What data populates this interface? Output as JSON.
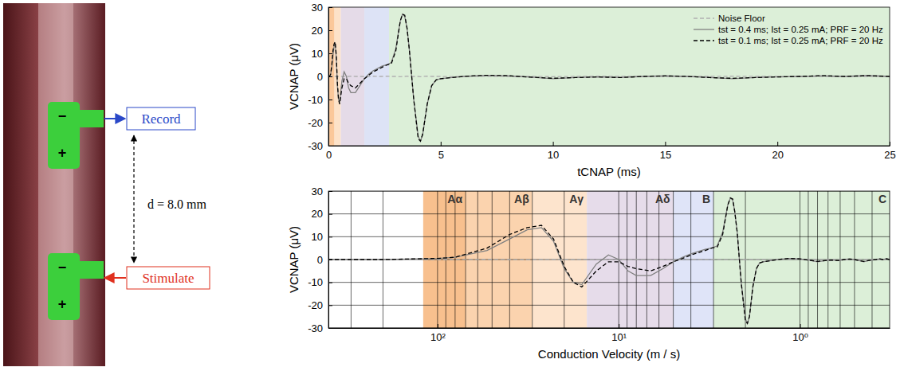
{
  "diagram": {
    "record": "Record",
    "stimulate": "Stimulate",
    "distance": "d = 8.0 mm",
    "minus": "−",
    "plus": "+"
  },
  "chart_data": [
    {
      "type": "line",
      "xlabel": "tCNAP (ms)",
      "ylabel": "VCNAP (μV)",
      "xlim": [
        0,
        25
      ],
      "xticks": [
        0,
        5,
        10,
        15,
        20,
        25
      ],
      "ylim": [
        -30,
        30
      ],
      "yticks": [
        -30,
        -20,
        -10,
        0,
        10,
        20,
        30
      ],
      "grid": false,
      "legend": "upper right",
      "bands": [
        {
          "from": 0,
          "to": 0.27,
          "color": "#fbc89a"
        },
        {
          "from": 0.27,
          "to": 0.55,
          "color": "#fde2c8"
        },
        {
          "from": 0.55,
          "to": 1.6,
          "color": "#e5dbe8"
        },
        {
          "from": 1.6,
          "to": 2.7,
          "color": "#dde3f6"
        },
        {
          "from": 2.7,
          "to": 25,
          "color": "#dcefd8"
        }
      ],
      "x": [
        0,
        0.02,
        0.04,
        0.08,
        0.1,
        0.15,
        0.2,
        0.25,
        0.3,
        0.35,
        0.4,
        0.45,
        0.5,
        0.6,
        0.7,
        0.8,
        0.9,
        1.0,
        1.2,
        1.4,
        1.6,
        1.8,
        2.0,
        2.2,
        2.4,
        2.6,
        2.8,
        3.0,
        3.2,
        3.3,
        3.4,
        3.5,
        3.6,
        3.8,
        4.0,
        4.1,
        4.2,
        4.4,
        4.6,
        4.8,
        5.0,
        5.5,
        6,
        7,
        8,
        9,
        10,
        11,
        12,
        13,
        14,
        15,
        16,
        17,
        18,
        19,
        20,
        21,
        22,
        23,
        24,
        25
      ],
      "series": [
        {
          "name": "Noise Floor",
          "color": "#b0b0b0",
          "line_style": "dashed",
          "values": [
            0,
            0,
            0,
            0,
            0,
            0.1,
            0,
            -0.1,
            0,
            0.1,
            0,
            0,
            0.1,
            0,
            -0.1,
            0,
            0,
            0.1,
            0,
            0,
            -0.1,
            0,
            0.1,
            0,
            0,
            0.1,
            0,
            0,
            -0.1,
            0,
            0,
            0.1,
            0,
            0,
            0,
            -0.1,
            0,
            0.1,
            0,
            0,
            0,
            -0.1,
            0,
            0.1,
            0,
            0,
            -0.1,
            0,
            0.1,
            0,
            0,
            -0.1,
            0,
            0,
            0.1,
            0,
            0,
            -0.1,
            0,
            0,
            0,
            0
          ]
        },
        {
          "name": "tst = 0.4 ms; Ist = 0.25 mA; PRF = 20 Hz",
          "color": "#808080",
          "line_style": "solid",
          "values": [
            0,
            0,
            0,
            0.5,
            1,
            4,
            9,
            13,
            14,
            8,
            -4,
            -10,
            -11,
            -2,
            2,
            0,
            -5,
            -7,
            -7,
            -4,
            -1,
            1,
            2.5,
            3.5,
            4.5,
            5,
            6,
            12,
            24,
            27,
            26,
            21,
            12,
            -10,
            -26,
            -28,
            -25,
            -12,
            -4,
            -1.5,
            -1,
            -0.5,
            0,
            0.5,
            0.3,
            -0.3,
            -1,
            -0.5,
            -0.2,
            -0.5,
            0,
            0.3,
            0,
            -0.5,
            -1,
            -0.5,
            -0.2,
            0,
            0.3,
            0,
            0.5,
            0
          ]
        },
        {
          "name": "tst = 0.1 ms; Ist = 0.25 mA; PRF = 20 Hz",
          "color": "#000000",
          "line_style": "dashed",
          "values": [
            0,
            0,
            0,
            0.5,
            1,
            5,
            11,
            14,
            15,
            9,
            -3,
            -10,
            -12,
            -5,
            -1,
            -1,
            -3,
            -4,
            -5,
            -3,
            -1,
            0.5,
            2,
            3,
            4,
            5,
            5.5,
            11,
            24,
            27,
            26.5,
            21,
            12,
            -10,
            -27,
            -28,
            -25,
            -12,
            -4,
            -1.5,
            -1,
            -0.5,
            0,
            0.5,
            0.3,
            -0.3,
            -0.8,
            -0.5,
            -0.2,
            -0.5,
            0,
            0.2,
            0,
            -0.5,
            -0.8,
            -0.5,
            -0.2,
            0,
            0.3,
            0,
            0.3,
            0
          ]
        }
      ]
    },
    {
      "type": "line",
      "xlabel": "Conduction Velocity (m / s)",
      "ylabel": "VCNAP (μV)",
      "log": "x",
      "xlim": [
        400,
        0.32
      ],
      "xticks": [
        {
          "value": 100,
          "label": "10²"
        },
        {
          "value": 10,
          "label": "10¹"
        },
        {
          "value": 1,
          "label": "10⁰"
        }
      ],
      "ylim": [
        -30,
        30
      ],
      "yticks": [
        -30,
        -20,
        -10,
        0,
        10,
        20,
        30
      ],
      "grid": true,
      "bands": [
        {
          "label": "Aα",
          "from": 120,
          "to": 70,
          "color": "#f8c08e"
        },
        {
          "label": "Aβ",
          "from": 70,
          "to": 30,
          "color": "#fbd3ae"
        },
        {
          "label": "Aγ",
          "from": 30,
          "to": 15,
          "color": "#fde4cd"
        },
        {
          "label": "Aδ",
          "from": 15,
          "to": 5,
          "color": "#e6dcea"
        },
        {
          "label": "B",
          "from": 5,
          "to": 3,
          "color": "#dfe4f8"
        },
        {
          "label": "C",
          "from": 3,
          "to": 0.32,
          "color": "#dcefd8"
        }
      ],
      "x": [
        400,
        200,
        100,
        80,
        53.3,
        40,
        32,
        26.7,
        22.9,
        20,
        17.8,
        16,
        13.3,
        11.4,
        10,
        8.89,
        8,
        6.67,
        5.71,
        5,
        4.44,
        4,
        3.64,
        3.33,
        3.08,
        2.86,
        2.67,
        2.5,
        2.42,
        2.35,
        2.29,
        2.22,
        2.11,
        2,
        1.95,
        1.9,
        1.82,
        1.74,
        1.67,
        1.6,
        1.45,
        1.33,
        1.14,
        1,
        0.889,
        0.8,
        0.727,
        0.667,
        0.615,
        0.571,
        0.533,
        0.5,
        0.471,
        0.444,
        0.421,
        0.4,
        0.381,
        0.364,
        0.348,
        0.333,
        0.32
      ],
      "series": [
        {
          "color": "#b0b0b0",
          "line_style": "dashed",
          "values": [
            0,
            0,
            0,
            0,
            0.1,
            0,
            -0.1,
            0,
            0.1,
            0,
            0,
            0.1,
            0,
            -0.1,
            0,
            0,
            0.1,
            0,
            0,
            -0.1,
            0,
            0.1,
            0,
            0,
            0.1,
            0,
            0,
            -0.1,
            0,
            0,
            0.1,
            0,
            0,
            0,
            -0.1,
            0,
            0.1,
            0,
            0,
            0,
            -0.1,
            0,
            0.1,
            0,
            0,
            -0.1,
            0,
            0.1,
            0,
            0,
            -0.1,
            0,
            0,
            0.1,
            0,
            0,
            -0.1,
            0,
            0,
            0,
            0
          ]
        },
        {
          "color": "#808080",
          "line_style": "solid",
          "values": [
            0,
            0,
            0.5,
            1,
            4,
            9,
            13,
            14,
            8,
            -4,
            -10,
            -11,
            -2,
            2,
            0,
            -5,
            -7,
            -7,
            -4,
            -1,
            1,
            2.5,
            3.5,
            4.5,
            5,
            6,
            12,
            24,
            27,
            26,
            21,
            12,
            -10,
            -26,
            -28,
            -25,
            -12,
            -4,
            -1.5,
            -1,
            -0.5,
            0,
            0.5,
            0.3,
            -0.3,
            -1,
            -0.5,
            -0.2,
            -0.5,
            0,
            0.3,
            0,
            -0.5,
            -1,
            -0.5,
            -0.2,
            0,
            0.3,
            0,
            0.5,
            0
          ]
        },
        {
          "color": "#000000",
          "line_style": "dashed",
          "values": [
            0,
            0,
            0.5,
            1,
            5,
            11,
            14,
            15,
            9,
            -3,
            -10,
            -12,
            -5,
            -1,
            -1,
            -3,
            -4,
            -5,
            -3,
            -1,
            0.5,
            2,
            3,
            4,
            5,
            5.5,
            11,
            24,
            27,
            26.5,
            21,
            12,
            -10,
            -27,
            -28,
            -25,
            -12,
            -4,
            -1.5,
            -1,
            -0.5,
            0,
            0.5,
            0.3,
            -0.3,
            -0.8,
            -0.5,
            -0.2,
            -0.5,
            0,
            0.2,
            0,
            -0.5,
            -0.8,
            -0.5,
            -0.2,
            0,
            0.3,
            0,
            0.3,
            0
          ]
        }
      ]
    }
  ]
}
